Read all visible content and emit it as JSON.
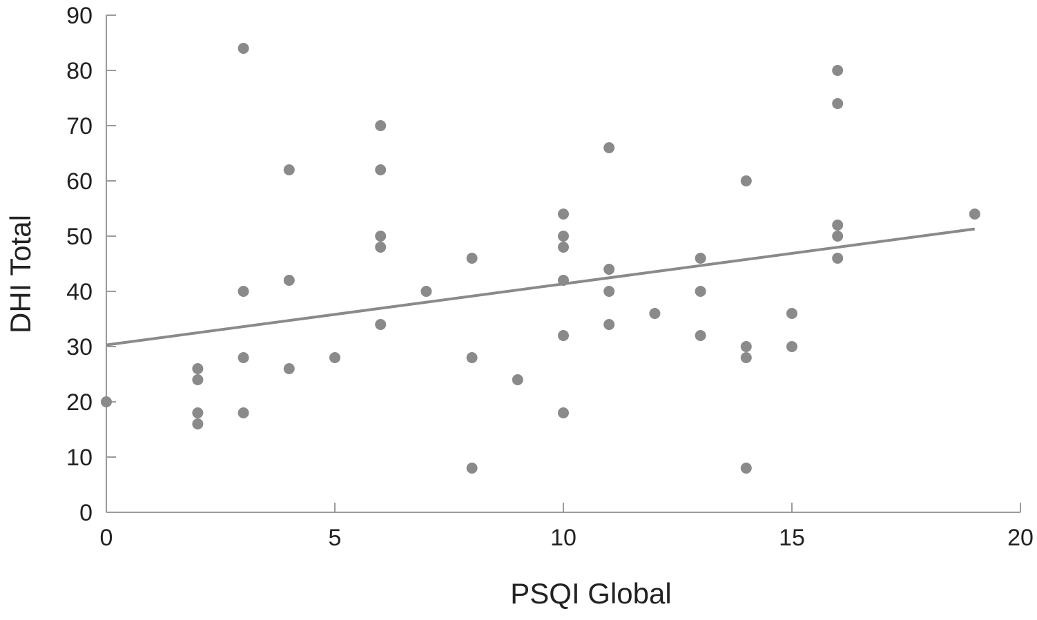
{
  "chart_data": {
    "type": "scatter",
    "xlabel": "PSQI Global",
    "ylabel": "DHI Total",
    "xlim": [
      0,
      20
    ],
    "ylim": [
      0,
      90
    ],
    "xticks": [
      0,
      5,
      10,
      15,
      20
    ],
    "yticks": [
      0,
      10,
      20,
      30,
      40,
      50,
      60,
      70,
      80,
      90
    ],
    "grid": false,
    "series": [
      {
        "points": [
          [
            0,
            20
          ],
          [
            2,
            26
          ],
          [
            2,
            24
          ],
          [
            2,
            18
          ],
          [
            2,
            16
          ],
          [
            3,
            84
          ],
          [
            3,
            40
          ],
          [
            3,
            28
          ],
          [
            3,
            18
          ],
          [
            4,
            62
          ],
          [
            4,
            42
          ],
          [
            4,
            26
          ],
          [
            5,
            28
          ],
          [
            6,
            70
          ],
          [
            6,
            62
          ],
          [
            6,
            50
          ],
          [
            6,
            48
          ],
          [
            6,
            34
          ],
          [
            7,
            40
          ],
          [
            8,
            46
          ],
          [
            8,
            28
          ],
          [
            8,
            8
          ],
          [
            9,
            24
          ],
          [
            10,
            54
          ],
          [
            10,
            50
          ],
          [
            10,
            48
          ],
          [
            10,
            42
          ],
          [
            10,
            32
          ],
          [
            10,
            18
          ],
          [
            11,
            66
          ],
          [
            11,
            44
          ],
          [
            11,
            40
          ],
          [
            11,
            34
          ],
          [
            12,
            36
          ],
          [
            13,
            46
          ],
          [
            13,
            40
          ],
          [
            13,
            32
          ],
          [
            14,
            60
          ],
          [
            14,
            30
          ],
          [
            14,
            28
          ],
          [
            14,
            8
          ],
          [
            15,
            36
          ],
          [
            15,
            30
          ],
          [
            16,
            80
          ],
          [
            16,
            74
          ],
          [
            16,
            52
          ],
          [
            16,
            50
          ],
          [
            16,
            46
          ],
          [
            19,
            54
          ]
        ]
      }
    ],
    "trendline": {
      "x": [
        0,
        19
      ],
      "y": [
        30.3,
        51.3
      ]
    }
  },
  "colors": {
    "points": "#8a8a8a",
    "trendline": "#8a8a8a",
    "axes": "#9a9a9a",
    "text": "#222222"
  }
}
